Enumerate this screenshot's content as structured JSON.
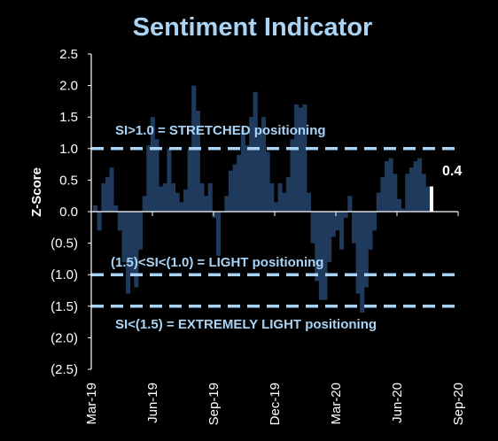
{
  "chart_data": {
    "type": "bar",
    "title": "Sentiment Indicator",
    "ylabel": "Z-Score",
    "xlabel": "",
    "ylim": [
      -2.5,
      2.5
    ],
    "y_ticks": [
      2.5,
      2.0,
      1.5,
      1.0,
      0.5,
      0.0,
      -0.5,
      -1.0,
      -1.5,
      -2.0,
      -2.5
    ],
    "y_tick_labels": [
      "2.5",
      "2.0",
      "1.5",
      "1.0",
      "0.5",
      "0.0",
      "(0.5)",
      "(1.0)",
      "(1.5)",
      "(2.0)",
      "(2.5)"
    ],
    "x_tick_labels": [
      "Mar-19",
      "Jun-19",
      "Sep-19",
      "Dec-19",
      "Mar-20",
      "Jun-20",
      "Sep-20"
    ],
    "colors": {
      "background": "#000000",
      "bar": "#1f3a5c",
      "title": "#a9d4f5",
      "threshold_line": "#a9d4f5",
      "axis_text": "#ffffff",
      "latest_marker": "#ffffff"
    },
    "series": [
      {
        "values": [
          0.1,
          -0.3,
          0.45,
          0.55,
          0.7,
          0.1,
          -0.3,
          -0.8,
          -1.3,
          -1.0,
          -1.2,
          -0.6,
          0.25,
          1.05,
          1.5,
          1.15,
          0.4,
          0.45,
          1.0,
          0.45,
          0.3,
          0.15,
          0.35,
          1.0,
          2.0,
          1.6,
          0.45,
          0.25,
          0.45,
          -0.1,
          -0.7,
          0.0,
          0.25,
          0.65,
          0.75,
          0.9,
          1.3,
          1.05,
          1.5,
          1.9,
          1.3,
          1.5,
          0.95,
          0.45,
          0.15,
          0.45,
          0.3,
          0.55,
          1.15,
          1.7,
          1.65,
          1.7,
          0.3,
          -0.5,
          -1.1,
          -1.4,
          -1.4,
          -0.8,
          -0.4,
          -0.3,
          -0.6,
          -0.1,
          0.25,
          -0.5,
          -1.3,
          -1.6,
          -1.2,
          -0.6,
          -0.3,
          0.3,
          0.55,
          0.8,
          0.85,
          0.6,
          0.2,
          0.05,
          0.6,
          0.7,
          0.8,
          0.85,
          0.6,
          0.4
        ]
      }
    ],
    "threshold_lines": [
      {
        "value": 1.0,
        "label": "SI>1.0 = STRETCHED positioning"
      },
      {
        "value": -1.0,
        "label": "(1.5)<SI<(1.0) = LIGHT positioning"
      },
      {
        "value": -1.5,
        "label": "SI<(1.5) = EXTREMELY LIGHT positioning"
      }
    ],
    "latest_value": {
      "value": 0.4,
      "label": "0.4"
    }
  }
}
